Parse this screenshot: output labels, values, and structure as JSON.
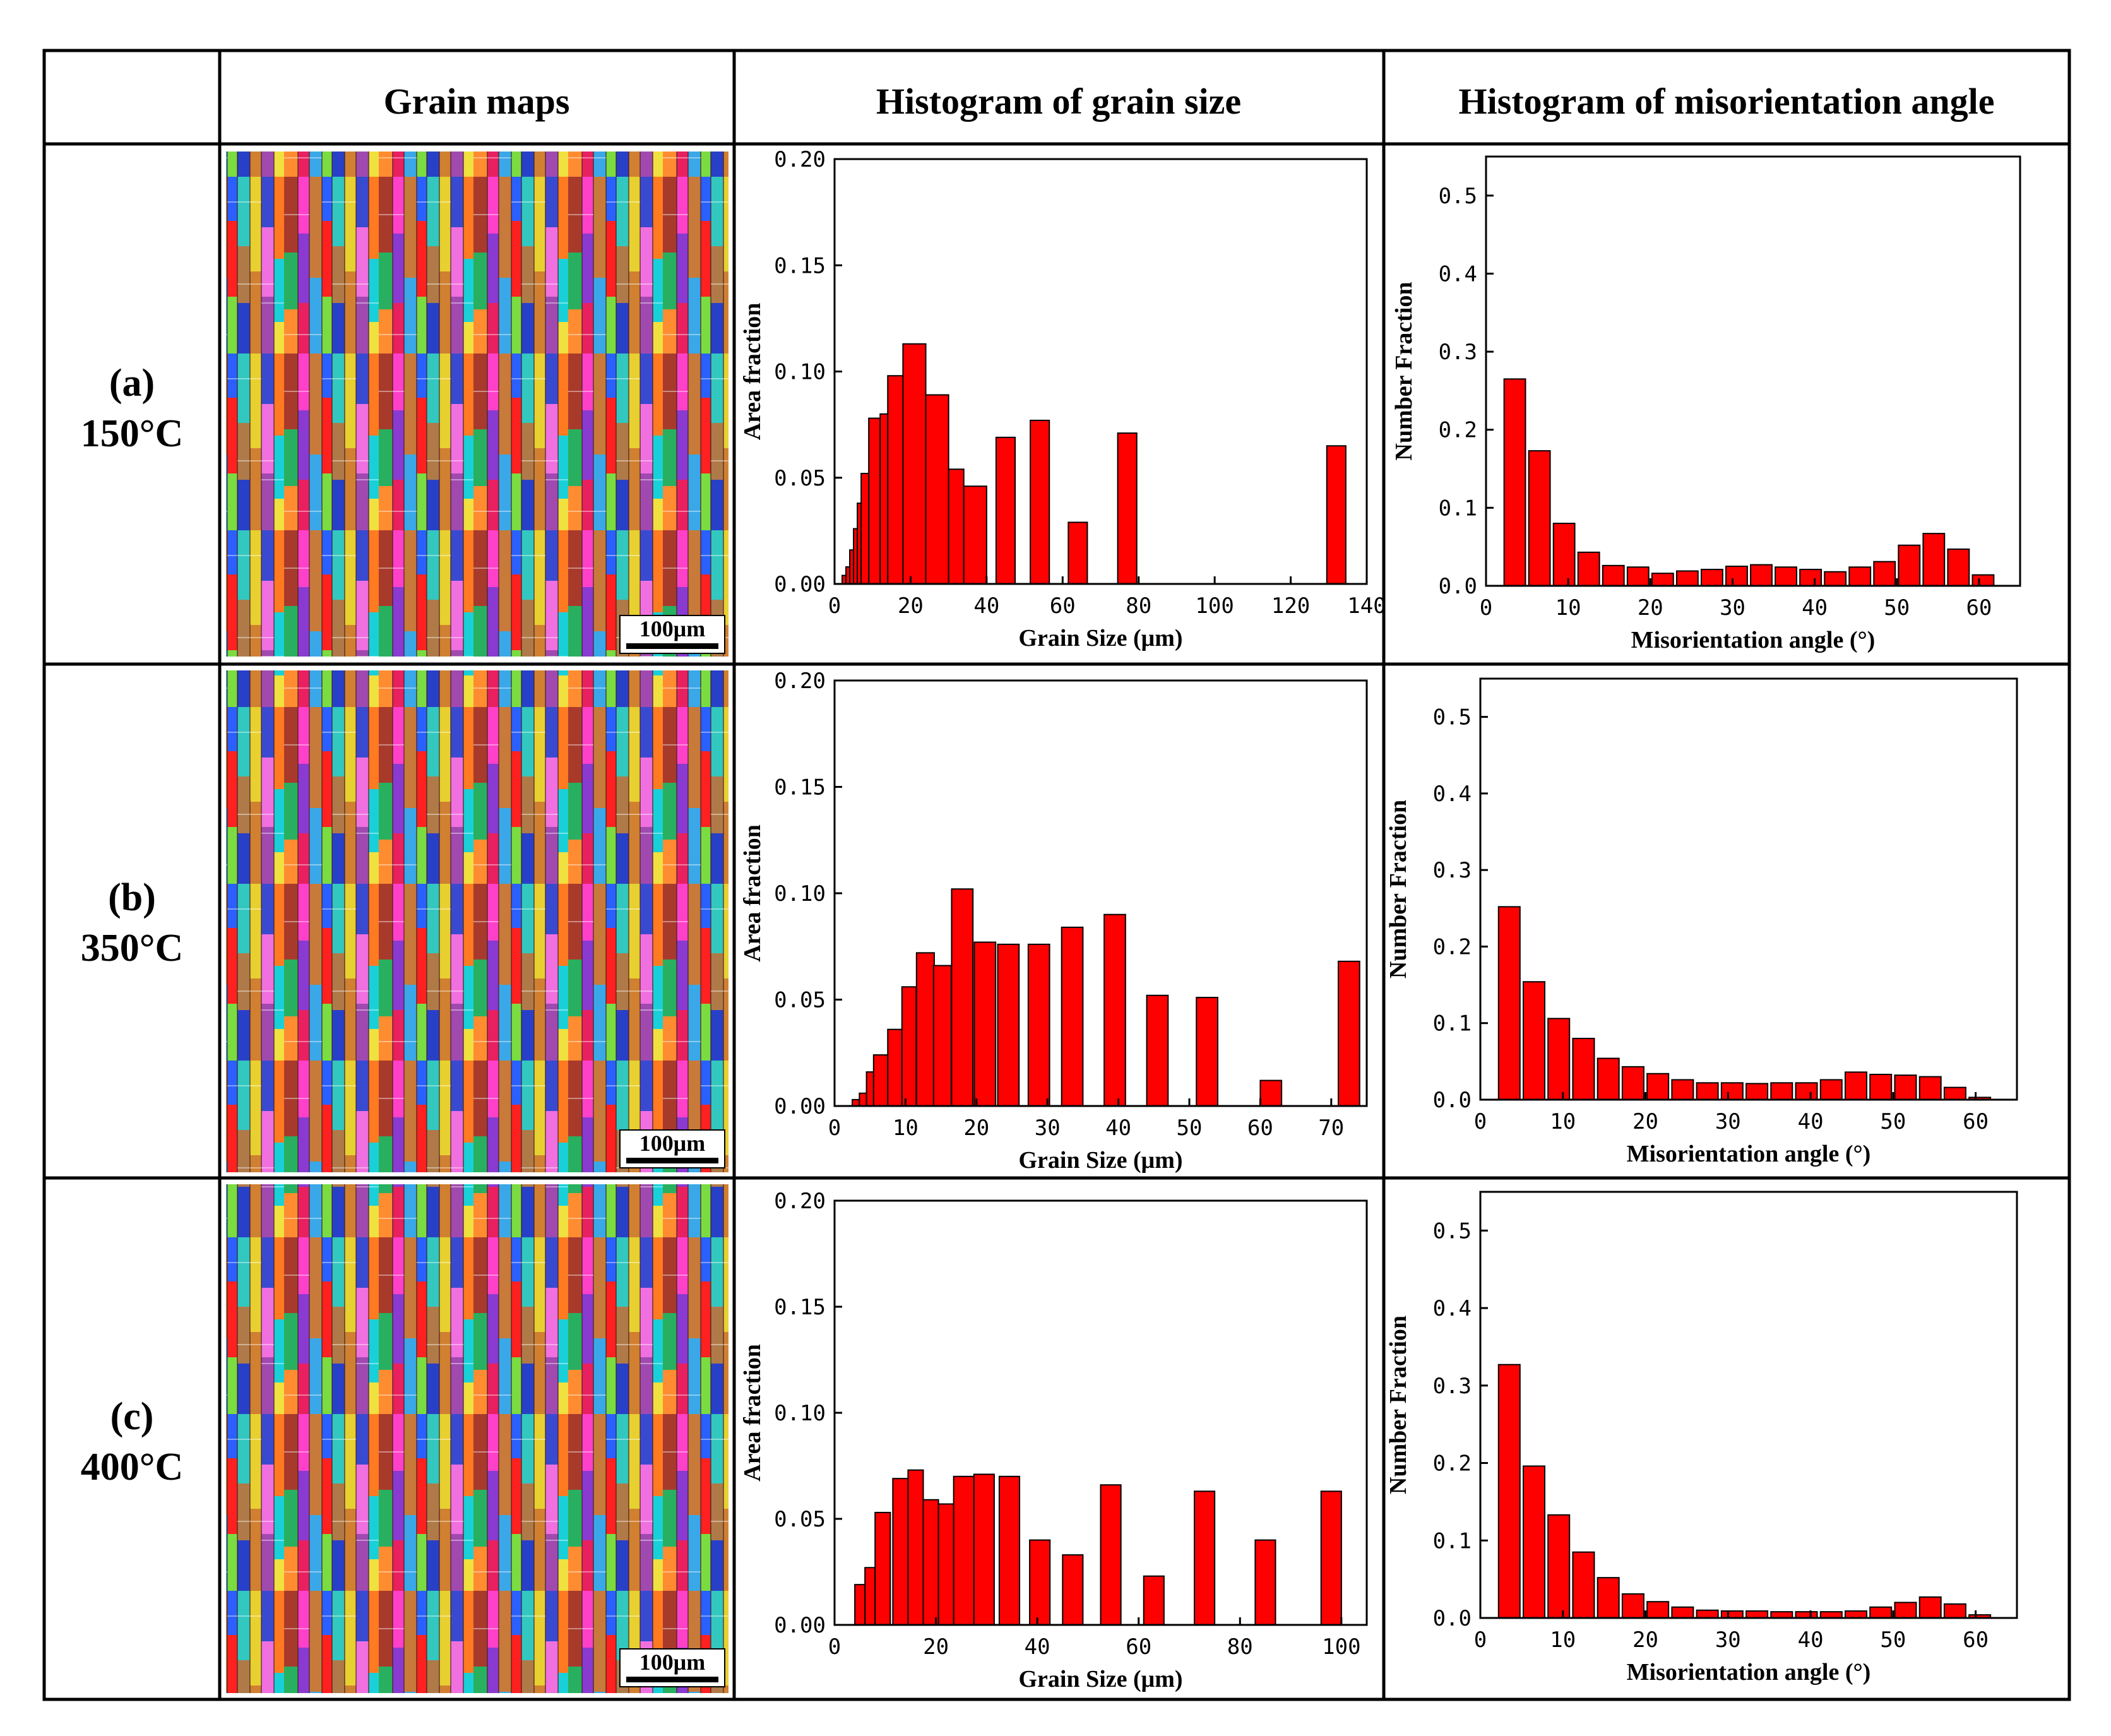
{
  "headers": {
    "col1": "Grain maps",
    "col2": "Histogram of grain size",
    "col3": "Histogram of misorientation angle"
  },
  "rows": [
    {
      "label": "(a)",
      "temp": "150°C",
      "scale_bar": "100μm"
    },
    {
      "label": "(b)",
      "temp": "350°C",
      "scale_bar": "100μm"
    },
    {
      "label": "(c)",
      "temp": "400°C",
      "scale_bar": "100μm"
    }
  ],
  "colors": {
    "bar_fill": "#ff0000",
    "bar_stroke": "#000000",
    "grid": "#000000"
  },
  "chart_data": [
    {
      "id": "grain-size-a",
      "type": "bar",
      "xlabel": "Grain Size (μm)",
      "ylabel": "Area fraction",
      "xlim": [
        0,
        140
      ],
      "ylim": [
        0,
        0.2
      ],
      "xticks": [
        0,
        20,
        40,
        60,
        80,
        100,
        120,
        140
      ],
      "yticks": [
        0.0,
        0.05,
        0.1,
        0.15,
        0.2
      ],
      "bars": [
        {
          "x": 2.5,
          "w": 1,
          "v": 0.004
        },
        {
          "x": 3.5,
          "w": 1,
          "v": 0.008
        },
        {
          "x": 4.5,
          "w": 1,
          "v": 0.016
        },
        {
          "x": 5.5,
          "w": 1,
          "v": 0.026
        },
        {
          "x": 6.5,
          "w": 1,
          "v": 0.038
        },
        {
          "x": 8,
          "w": 2,
          "v": 0.052
        },
        {
          "x": 10.5,
          "w": 3,
          "v": 0.078
        },
        {
          "x": 13,
          "w": 2,
          "v": 0.08
        },
        {
          "x": 16,
          "w": 4,
          "v": 0.098
        },
        {
          "x": 21,
          "w": 6,
          "v": 0.113
        },
        {
          "x": 27,
          "w": 6,
          "v": 0.089
        },
        {
          "x": 32,
          "w": 4,
          "v": 0.054
        },
        {
          "x": 37,
          "w": 6,
          "v": 0.046
        },
        {
          "x": 45,
          "w": 5,
          "v": 0.069
        },
        {
          "x": 54,
          "w": 5,
          "v": 0.077
        },
        {
          "x": 64,
          "w": 5,
          "v": 0.029
        },
        {
          "x": 77,
          "w": 5,
          "v": 0.071
        },
        {
          "x": 132,
          "w": 5,
          "v": 0.065
        }
      ]
    },
    {
      "id": "misorientation-a",
      "type": "bar",
      "xlabel": "Misorientation angle (°)",
      "ylabel": "Number Fraction",
      "xlim": [
        0,
        65
      ],
      "ylim": [
        0,
        0.55
      ],
      "xticks": [
        0,
        10,
        20,
        30,
        40,
        50,
        60
      ],
      "yticks": [
        0.0,
        0.1,
        0.2,
        0.3,
        0.4,
        0.5
      ],
      "bar_width": 2.6,
      "x": [
        3.5,
        6.5,
        9.5,
        12.5,
        15.5,
        18.5,
        21.5,
        24.5,
        27.5,
        30.5,
        33.5,
        36.5,
        39.5,
        42.5,
        45.5,
        48.5,
        51.5,
        54.5,
        57.5,
        60.5
      ],
      "values": [
        0.265,
        0.173,
        0.08,
        0.043,
        0.026,
        0.024,
        0.016,
        0.019,
        0.021,
        0.025,
        0.027,
        0.024,
        0.021,
        0.018,
        0.024,
        0.031,
        0.052,
        0.067,
        0.047,
        0.014
      ]
    },
    {
      "id": "grain-size-b",
      "type": "bar",
      "xlabel": "Grain Size (μm)",
      "ylabel": "Area fraction",
      "xlim": [
        0,
        75
      ],
      "ylim": [
        0,
        0.2
      ],
      "xticks": [
        0,
        10,
        20,
        30,
        40,
        50,
        60,
        70
      ],
      "yticks": [
        0.0,
        0.05,
        0.1,
        0.15,
        0.2
      ],
      "bars": [
        {
          "x": 3,
          "w": 1,
          "v": 0.003
        },
        {
          "x": 4,
          "w": 1,
          "v": 0.006
        },
        {
          "x": 5,
          "w": 1,
          "v": 0.016
        },
        {
          "x": 6.5,
          "w": 2,
          "v": 0.024
        },
        {
          "x": 8.5,
          "w": 2,
          "v": 0.036
        },
        {
          "x": 10.5,
          "w": 2,
          "v": 0.056
        },
        {
          "x": 12.8,
          "w": 2.5,
          "v": 0.072
        },
        {
          "x": 15.2,
          "w": 2.5,
          "v": 0.066
        },
        {
          "x": 18,
          "w": 3,
          "v": 0.102
        },
        {
          "x": 21.2,
          "w": 3,
          "v": 0.077
        },
        {
          "x": 24.5,
          "w": 3,
          "v": 0.076
        },
        {
          "x": 28.8,
          "w": 3,
          "v": 0.076
        },
        {
          "x": 33.5,
          "w": 3,
          "v": 0.084
        },
        {
          "x": 39.5,
          "w": 3,
          "v": 0.09
        },
        {
          "x": 45.5,
          "w": 3,
          "v": 0.052
        },
        {
          "x": 52.5,
          "w": 3,
          "v": 0.051
        },
        {
          "x": 61.5,
          "w": 3,
          "v": 0.012
        },
        {
          "x": 72.5,
          "w": 3,
          "v": 0.068
        }
      ]
    },
    {
      "id": "misorientation-b",
      "type": "bar",
      "xlabel": "Misorientation angle (°)",
      "ylabel": "Number Fraction",
      "xlim": [
        0,
        65
      ],
      "ylim": [
        0,
        0.55
      ],
      "xticks": [
        0,
        10,
        20,
        30,
        40,
        50,
        60
      ],
      "yticks": [
        0.0,
        0.1,
        0.2,
        0.3,
        0.4,
        0.5
      ],
      "bar_width": 2.6,
      "x": [
        3.5,
        6.5,
        9.5,
        12.5,
        15.5,
        18.5,
        21.5,
        24.5,
        27.5,
        30.5,
        33.5,
        36.5,
        39.5,
        42.5,
        45.5,
        48.5,
        51.5,
        54.5,
        57.5,
        60.5
      ],
      "values": [
        0.252,
        0.154,
        0.106,
        0.08,
        0.054,
        0.043,
        0.034,
        0.026,
        0.022,
        0.022,
        0.021,
        0.022,
        0.022,
        0.026,
        0.036,
        0.033,
        0.032,
        0.03,
        0.016,
        0.003
      ]
    },
    {
      "id": "grain-size-c",
      "type": "bar",
      "xlabel": "Grain Size (μm)",
      "ylabel": "Area fraction",
      "xlim": [
        0,
        105
      ],
      "ylim": [
        0,
        0.2
      ],
      "xticks": [
        0,
        20,
        40,
        60,
        80,
        100
      ],
      "yticks": [
        0.0,
        0.05,
        0.1,
        0.15,
        0.2
      ],
      "bars": [
        {
          "x": 5,
          "w": 2,
          "v": 0.019
        },
        {
          "x": 7,
          "w": 2,
          "v": 0.027
        },
        {
          "x": 9.5,
          "w": 3,
          "v": 0.053
        },
        {
          "x": 13,
          "w": 3,
          "v": 0.069
        },
        {
          "x": 16,
          "w": 3,
          "v": 0.073
        },
        {
          "x": 19,
          "w": 3,
          "v": 0.059
        },
        {
          "x": 22,
          "w": 3,
          "v": 0.057
        },
        {
          "x": 25.5,
          "w": 4,
          "v": 0.07
        },
        {
          "x": 29.5,
          "w": 4,
          "v": 0.071
        },
        {
          "x": 34.5,
          "w": 4,
          "v": 0.07
        },
        {
          "x": 40.5,
          "w": 4,
          "v": 0.04
        },
        {
          "x": 47,
          "w": 4,
          "v": 0.033
        },
        {
          "x": 54.5,
          "w": 4,
          "v": 0.066
        },
        {
          "x": 63,
          "w": 4,
          "v": 0.023
        },
        {
          "x": 73,
          "w": 4,
          "v": 0.063
        },
        {
          "x": 85,
          "w": 4,
          "v": 0.04
        },
        {
          "x": 98,
          "w": 4,
          "v": 0.063
        }
      ]
    },
    {
      "id": "misorientation-c",
      "type": "bar",
      "xlabel": "Misorientation angle (°)",
      "ylabel": "Number Fraction",
      "xlim": [
        0,
        65
      ],
      "ylim": [
        0,
        0.55
      ],
      "xticks": [
        0,
        10,
        20,
        30,
        40,
        50,
        60
      ],
      "yticks": [
        0.0,
        0.1,
        0.2,
        0.3,
        0.4,
        0.5
      ],
      "bar_width": 2.6,
      "x": [
        3.5,
        6.5,
        9.5,
        12.5,
        15.5,
        18.5,
        21.5,
        24.5,
        27.5,
        30.5,
        33.5,
        36.5,
        39.5,
        42.5,
        45.5,
        48.5,
        51.5,
        54.5,
        57.5,
        60.5
      ],
      "values": [
        0.327,
        0.196,
        0.133,
        0.085,
        0.052,
        0.031,
        0.021,
        0.014,
        0.01,
        0.009,
        0.009,
        0.008,
        0.008,
        0.008,
        0.009,
        0.014,
        0.02,
        0.027,
        0.018,
        0.004
      ]
    }
  ]
}
